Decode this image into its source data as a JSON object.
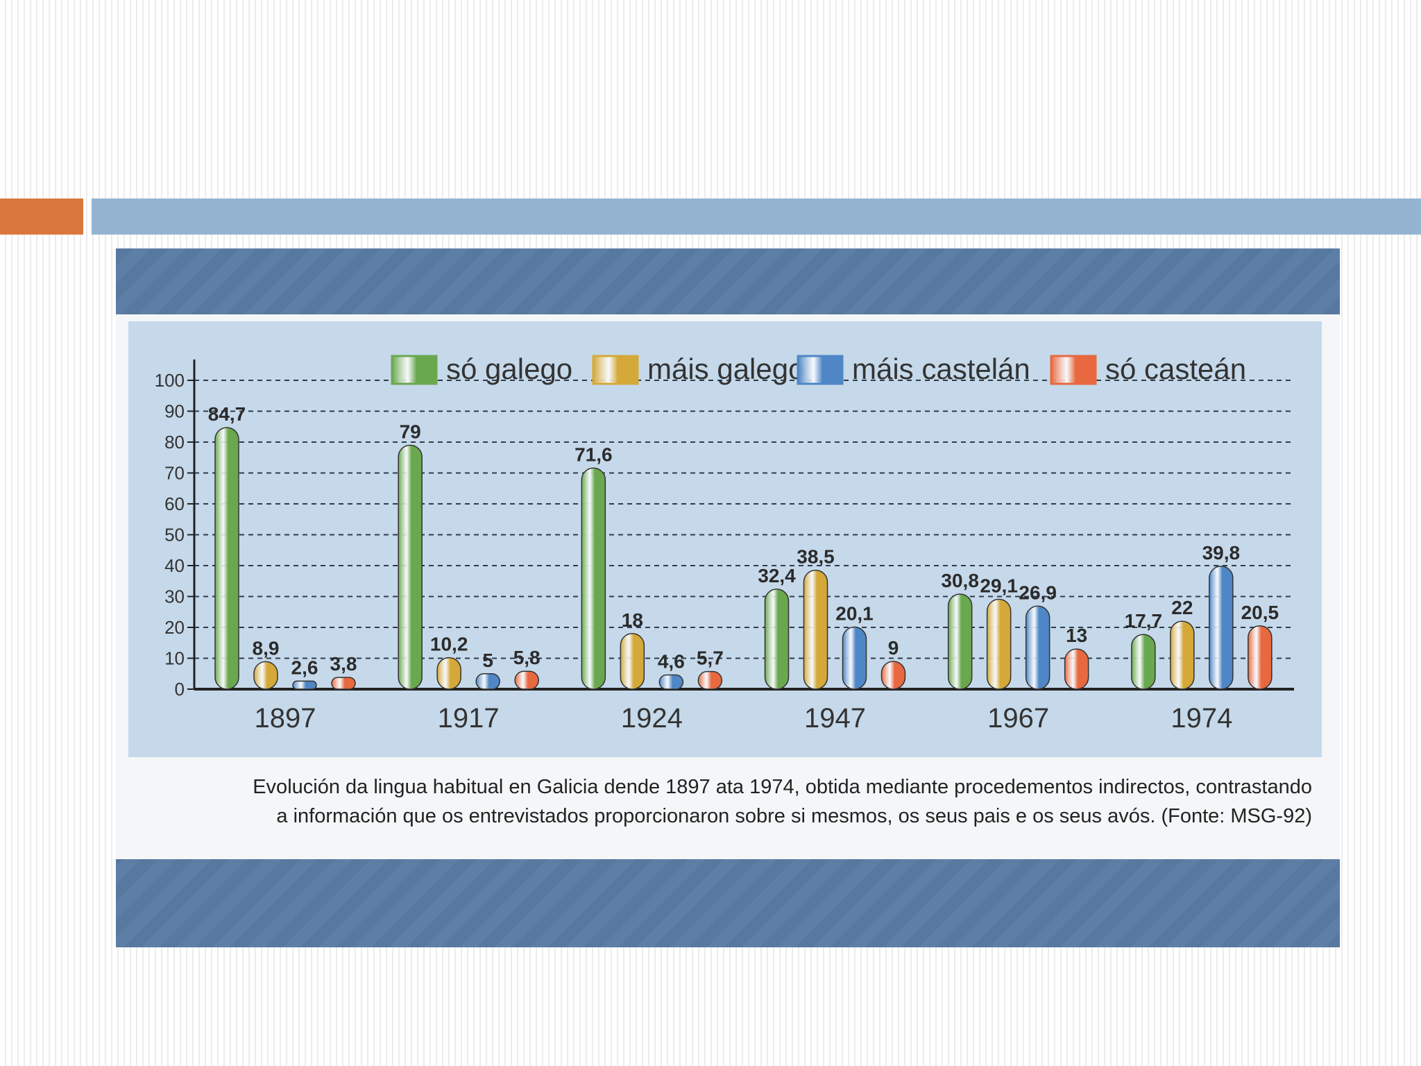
{
  "slide": {
    "accent_color": "#d9773e",
    "title_bar_color": "#94b4d0"
  },
  "photo": {
    "frame_color": "#57789f",
    "caption_lines": [
      "Evolución da lingua habitual en Galicia dende 1897 ata 1974, obtida mediante procedementos indirectos, contrastando",
      "a información que os entrevistados proporcionaron sobre si mesmos, os seus pais e os seus avós. (Fonte: MSG-92)"
    ]
  },
  "chart_data": {
    "type": "bar",
    "title": "",
    "xlabel": "",
    "ylabel": "",
    "categories": [
      "1897",
      "1917",
      "1924",
      "1947",
      "1967",
      "1974"
    ],
    "ylim": [
      0,
      100
    ],
    "yticks": [
      0,
      10,
      20,
      30,
      40,
      50,
      60,
      70,
      80,
      90,
      100
    ],
    "grid": true,
    "legend_position": "top",
    "series": [
      {
        "name": "só galego",
        "color": "#6aa84f",
        "values": [
          84.7,
          79,
          71.6,
          32.4,
          30.8,
          17.7
        ],
        "labels": [
          "84,7",
          "79",
          "71,6",
          "32,4",
          "30,8",
          "17,7"
        ]
      },
      {
        "name": "máis galego",
        "color": "#d4a93a",
        "values": [
          8.9,
          10.2,
          18,
          38.5,
          29.1,
          22
        ],
        "labels": [
          "8,9",
          "10,2",
          "18",
          "38,5",
          "29,1",
          "22"
        ]
      },
      {
        "name": "máis castelán",
        "color": "#4f86c6",
        "values": [
          2.6,
          5,
          4.6,
          20.1,
          26.9,
          39.8
        ],
        "labels": [
          "2,6",
          "5",
          "4,6",
          "20,1",
          "26,9",
          "39,8"
        ]
      },
      {
        "name": "só casteán",
        "color": "#e8683f",
        "values": [
          3.8,
          5.8,
          5.7,
          9,
          13,
          20.5
        ],
        "labels": [
          "3,8",
          "5,8",
          "5,7",
          "9",
          "13",
          "20,5"
        ]
      }
    ]
  }
}
